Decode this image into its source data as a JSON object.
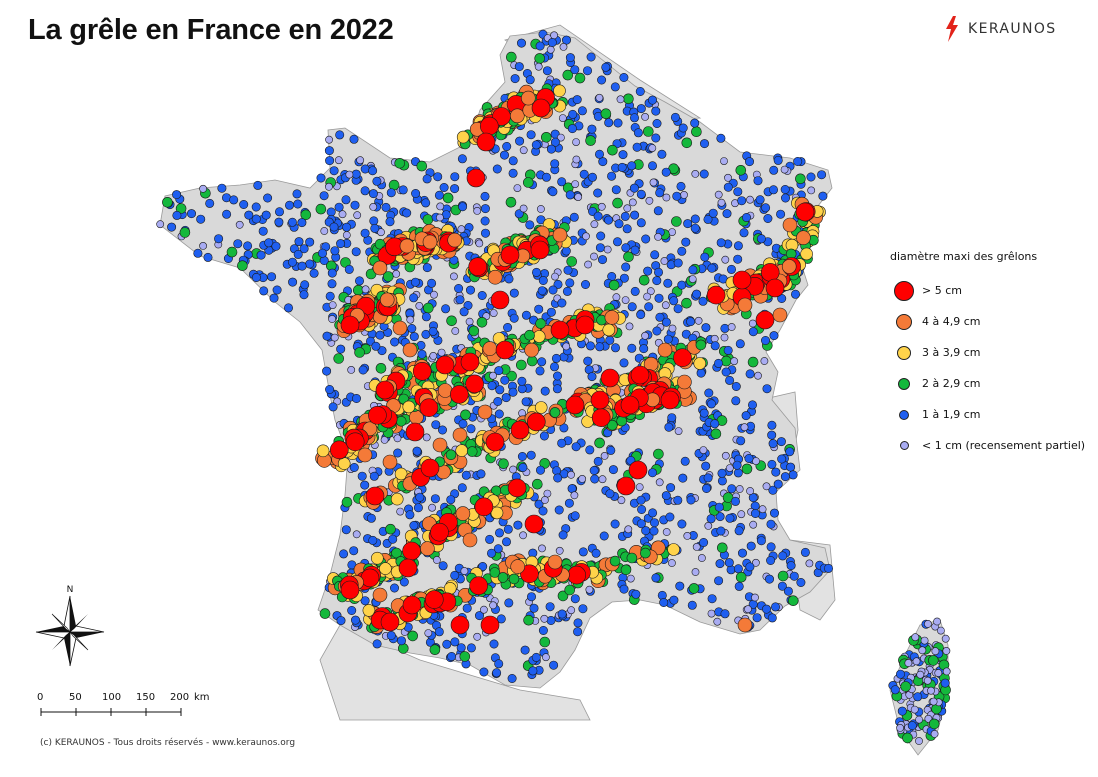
{
  "title": "La grêle en France en 2022",
  "brand": {
    "name": "KERAUNOS",
    "logo_icon": "lightning-bolt-icon",
    "logo_color": "#e2231a"
  },
  "legend": {
    "title": "diamètre maxi des grêlons",
    "items": [
      {
        "label": "> 5 cm",
        "color": "#ff0000"
      },
      {
        "label": "4 à 4,9 cm",
        "color": "#f47a38"
      },
      {
        "label": "3 à 3,9 cm",
        "color": "#ffd34a"
      },
      {
        "label": "2 à 2,9 cm",
        "color": "#14b83c"
      },
      {
        "label": "1 à 1,9 cm",
        "color": "#1f5ff0"
      },
      {
        "label": "< 1 cm (recensement partiel)",
        "color": "#a9acf2"
      }
    ]
  },
  "scale_bar": {
    "ticks": [
      "0",
      "50",
      "100",
      "150",
      "200"
    ],
    "unit": "km"
  },
  "north_arrow": {
    "label": "N",
    "icon": "compass-rose-icon"
  },
  "copyright": "(c) KERAUNOS - Tous droits réservés - www.keraunos.org",
  "colors": {
    "land": "#d9d9d9",
    "border": "#9a9a9a",
    "marker_outline": "#1a1a1a"
  }
}
